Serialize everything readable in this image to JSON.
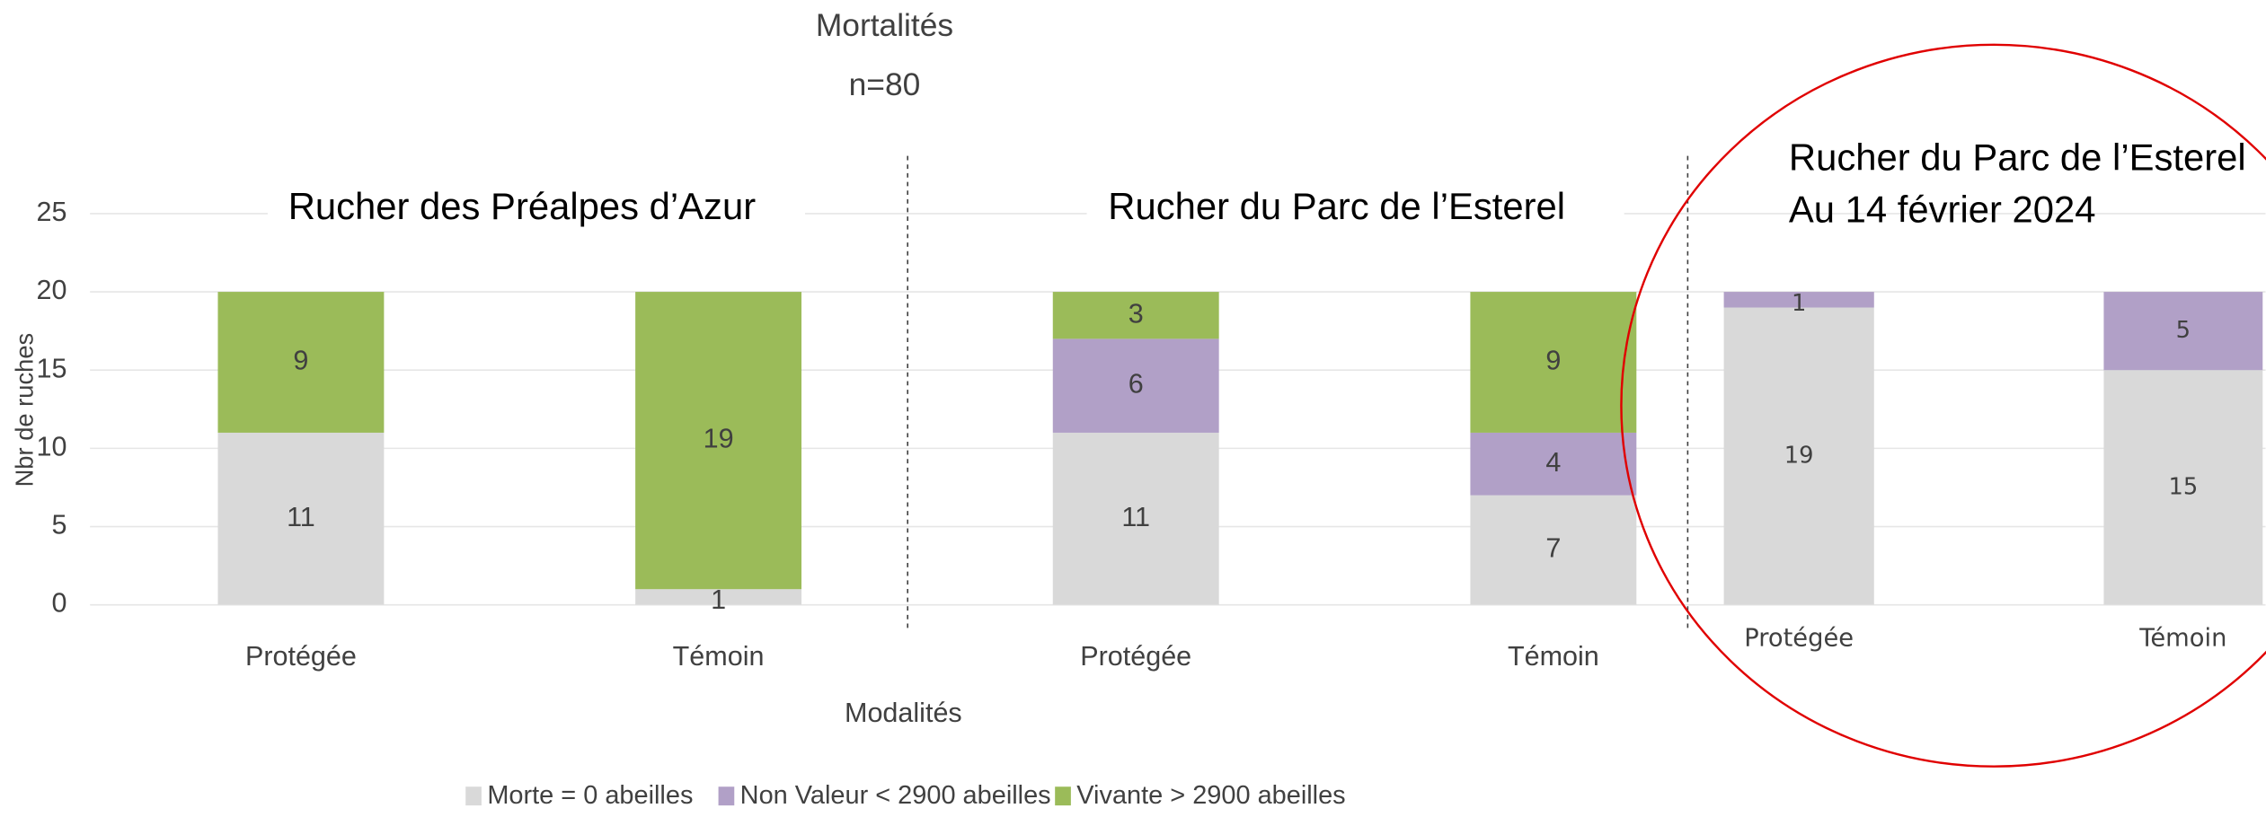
{
  "chart_data": {
    "type": "stacked_bar",
    "title": "Mortalités",
    "subtitle": "n=80",
    "x_label": "Modalités",
    "y_label": "Nbr de ruches",
    "annotations": [
      "Rucher des Préalpes d’Azur",
      "Rucher du Parc de l’Esterel",
      "Rucher du Parc de l’Esterel",
      "Au 14 février 2024"
    ],
    "categories": [
      "Protégée",
      "Témoin",
      "Protégée",
      "Témoin",
      "Protégée",
      "Témoin"
    ],
    "series": [
      {
        "name": "Morte = 0 abeilles",
        "color": "#d9d9d9",
        "values": [
          11,
          1,
          11,
          7,
          19,
          15
        ]
      },
      {
        "name": "Non Valeur < 2900 abeilles",
        "color": "#b1a0c7",
        "values": [
          null,
          null,
          6,
          4,
          1,
          5
        ]
      },
      {
        "name": "Vivante > 2900 abeilles",
        "color": "#9bbb59",
        "values": [
          9,
          19,
          3,
          9,
          null,
          null
        ]
      }
    ],
    "ylim": [
      0,
      25
    ],
    "yticks": [
      0,
      5,
      10,
      15,
      20,
      25
    ],
    "grid": true,
    "legend": "bottom"
  }
}
